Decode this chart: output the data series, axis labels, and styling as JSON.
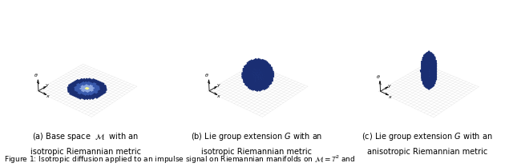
{
  "figure_width": 6.4,
  "figure_height": 2.09,
  "dpi": 100,
  "background_color": "#ffffff",
  "panels": [
    {
      "label": "(a)",
      "caption_line1": "(a) Base space  $\\mathcal{M}$  with an",
      "caption_line2": "isotropic Riemannian metric"
    },
    {
      "label": "(b)",
      "caption_line1": "(b) Lie group extension $G$ with an",
      "caption_line2": "isotropic Riemannian metric"
    },
    {
      "label": "(c)",
      "caption_line1": "(c) Lie group extension $G$ with an",
      "caption_line2": "anisotropic Riemannian metric"
    }
  ],
  "figure_caption": "Figure 1: Isotropic diffusion applied to an impulse signal on Riemannian manifolds on $\\mathcal{M} = \\mathbb{T}^2$ and",
  "caption_fontsize": 7.0,
  "fig_caption_fontsize": 6.5,
  "grid_color": "#cccccc",
  "elev": 30,
  "azim": -50
}
